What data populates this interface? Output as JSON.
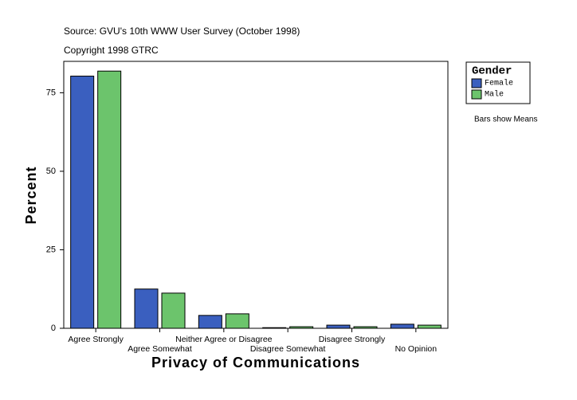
{
  "chart_data": {
    "type": "bar",
    "subtitle": "Source: GVU's 10th WWW User Survey (October 1998)",
    "copyright": "Copyright 1998 GTRC",
    "note": "Bars show Means",
    "x_label": "Privacy of Communications",
    "y_label": "Percent",
    "legend_title": "Gender",
    "categories": [
      "Agree Strongly",
      "Agree Somewhat",
      "Neither Agree or Disagree",
      "Disagree Somewhat",
      "Disagree Strongly",
      "No Opinion"
    ],
    "series": [
      {
        "name": "Female",
        "color": "#3a5fbf",
        "values": [
          80.3,
          12.5,
          4.1,
          0.2,
          1.0,
          1.3
        ]
      },
      {
        "name": "Male",
        "color": "#6cc46c",
        "values": [
          81.9,
          11.2,
          4.6,
          0.5,
          0.5,
          1.0
        ]
      }
    ],
    "ylim": [
      0,
      85
    ],
    "yticks": [
      0,
      25,
      50,
      75
    ]
  }
}
